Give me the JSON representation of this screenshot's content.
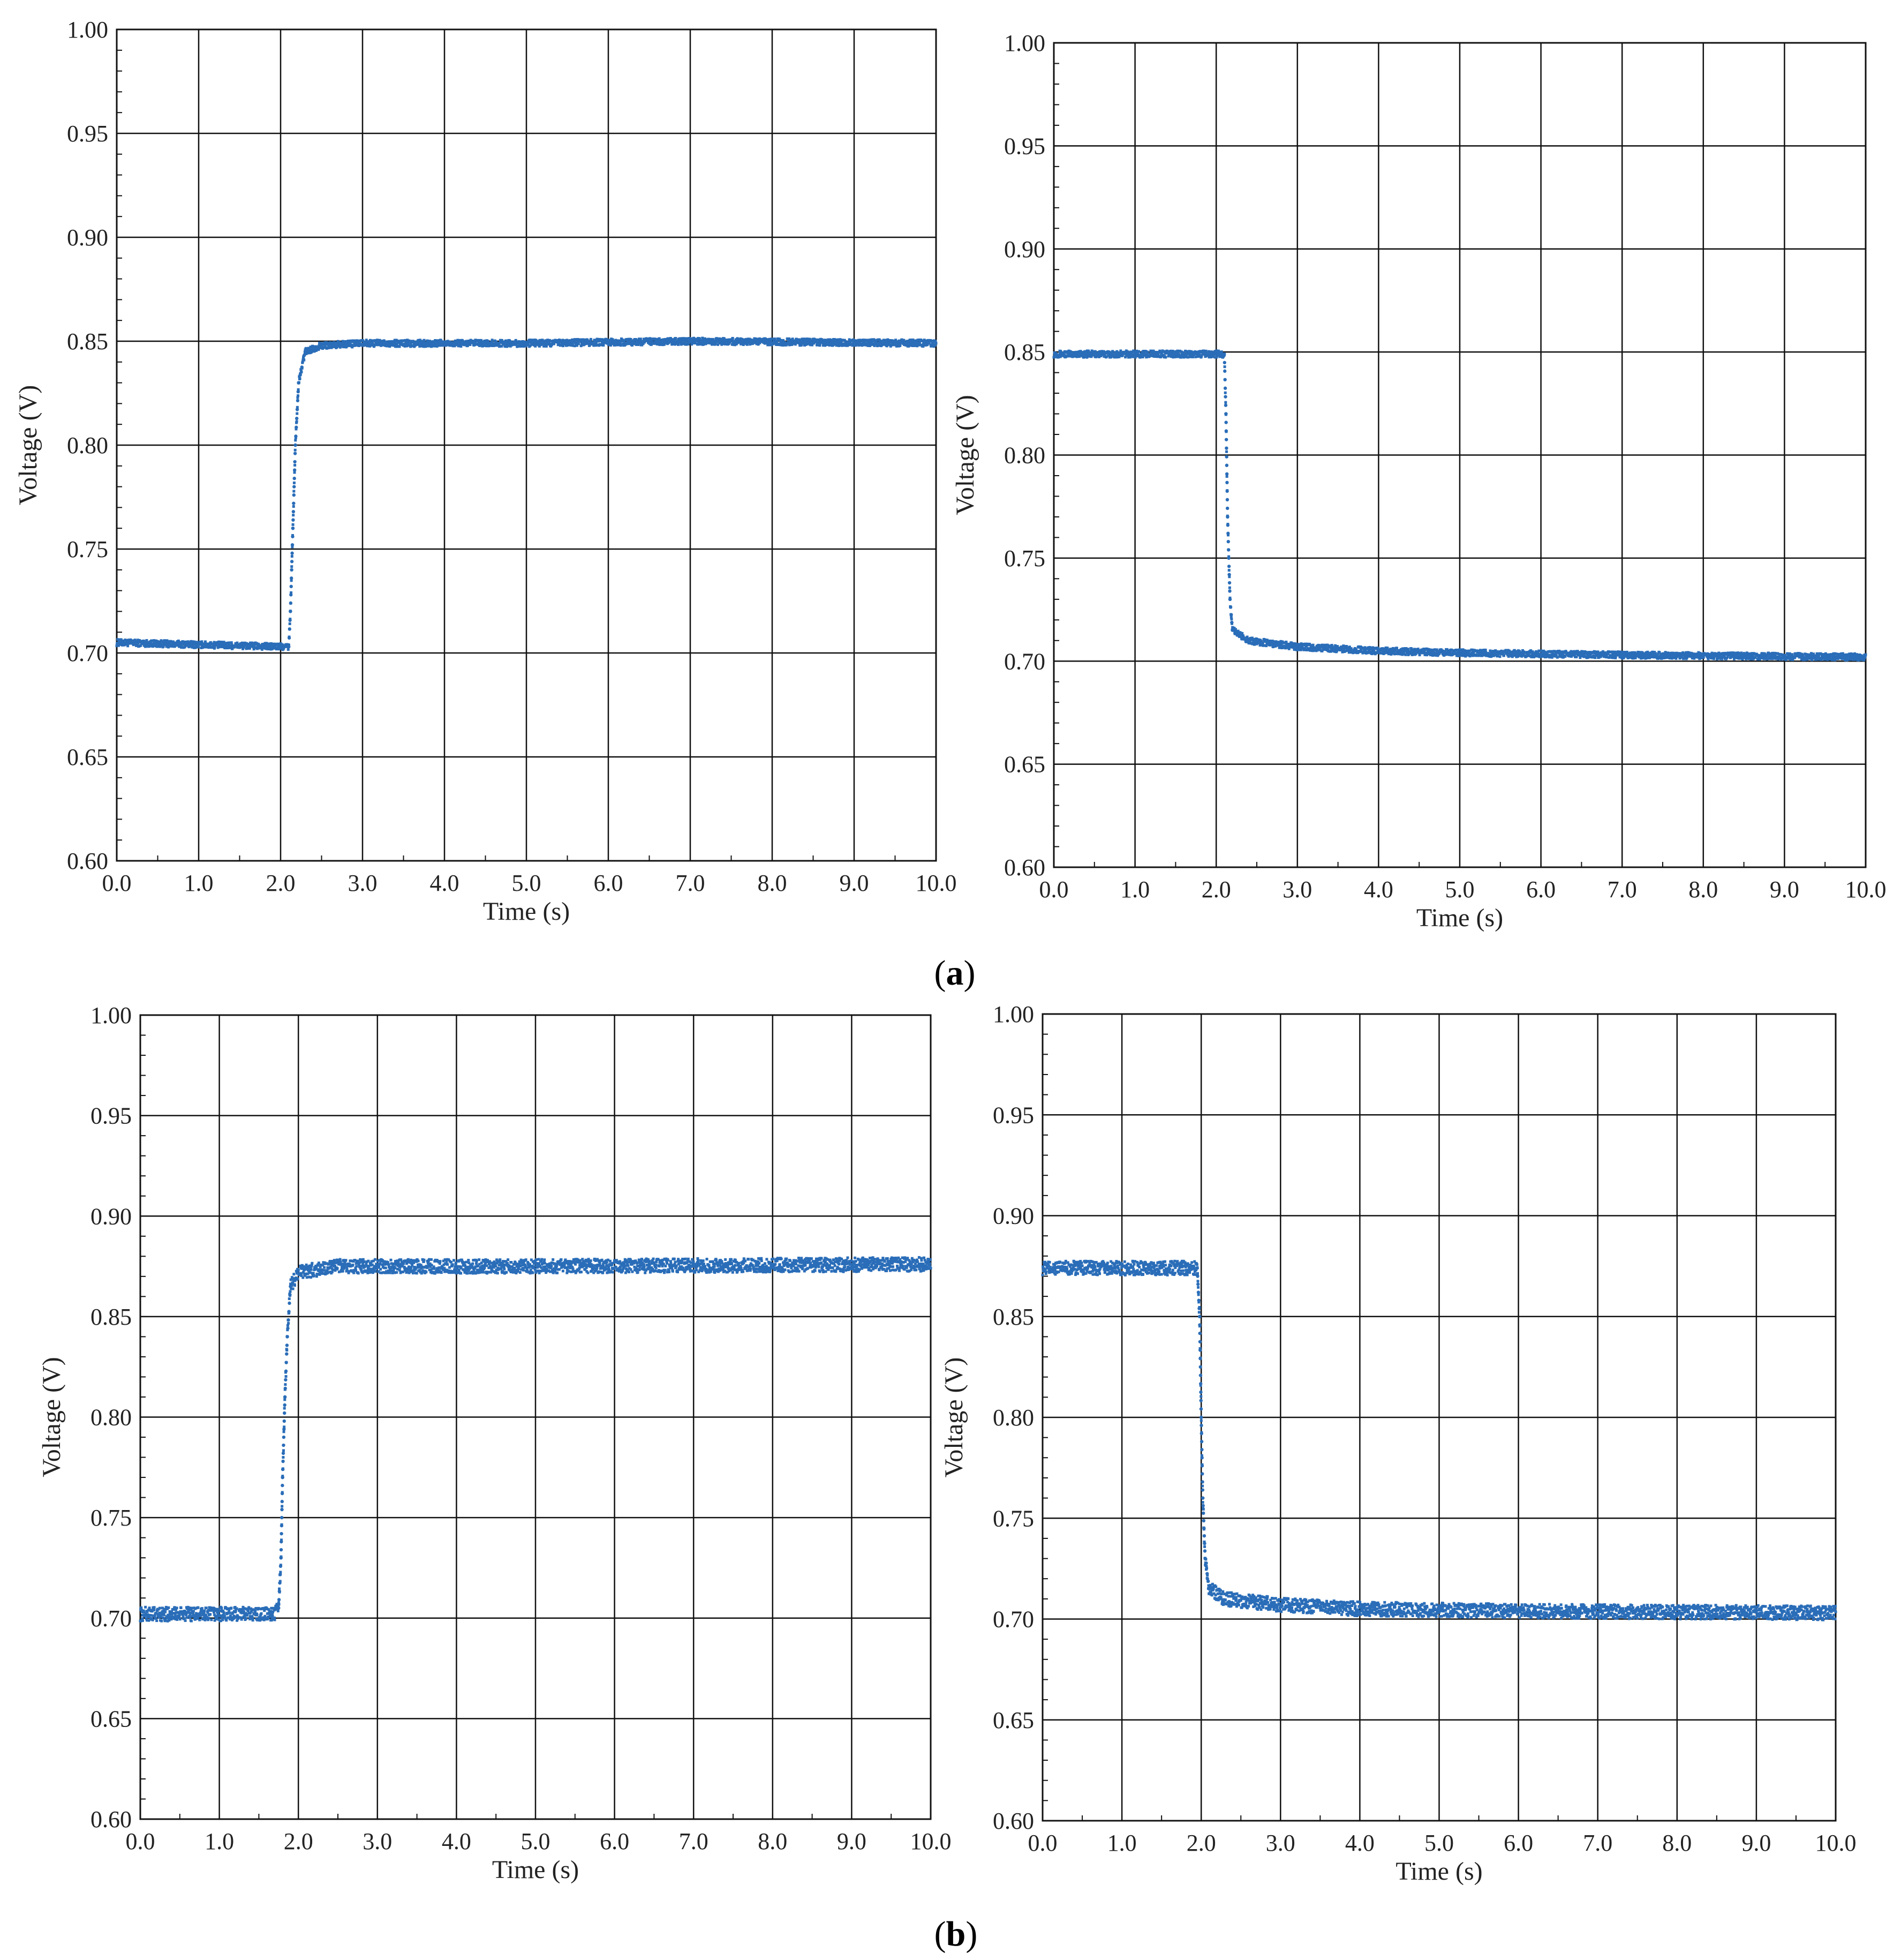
{
  "panel_labels": [
    "a",
    "b"
  ],
  "chart_data": [
    {
      "type": "scatter",
      "panel": "a",
      "xlabel": "Time (s)",
      "ylabel": "Voltage (V)",
      "xlim": [
        0,
        10
      ],
      "ylim": [
        0.6,
        1.0
      ],
      "xticks": [
        "0.0",
        "1.0",
        "2.0",
        "3.0",
        "4.0",
        "5.0",
        "6.0",
        "7.0",
        "8.0",
        "9.0",
        "10.0"
      ],
      "yticks": [
        "0.60",
        "0.65",
        "0.70",
        "0.75",
        "0.80",
        "0.85",
        "0.90",
        "0.95",
        "1.00"
      ],
      "grid": true,
      "color": "#2a6db8",
      "series": [
        {
          "values": [
            [
              0.0,
              0.705
            ],
            [
              1.0,
              0.704
            ],
            [
              2.0,
              0.703
            ],
            [
              2.1,
              0.703
            ],
            [
              2.12,
              0.72
            ],
            [
              2.15,
              0.76
            ],
            [
              2.18,
              0.8
            ],
            [
              2.22,
              0.83
            ],
            [
              2.3,
              0.845
            ],
            [
              2.5,
              0.848
            ],
            [
              3.0,
              0.849
            ],
            [
              5.0,
              0.849
            ],
            [
              7.0,
              0.85
            ],
            [
              10.0,
              0.849
            ]
          ]
        }
      ]
    },
    {
      "type": "scatter",
      "panel": "a",
      "xlabel": "Time (s)",
      "ylabel": "Voltage (V)",
      "xlim": [
        0,
        10
      ],
      "ylim": [
        0.6,
        1.0
      ],
      "xticks": [
        "0.0",
        "1.0",
        "2.0",
        "3.0",
        "4.0",
        "5.0",
        "6.0",
        "7.0",
        "8.0",
        "9.0",
        "10.0"
      ],
      "yticks": [
        "0.60",
        "0.65",
        "0.70",
        "0.75",
        "0.80",
        "0.85",
        "0.90",
        "0.95",
        "1.00"
      ],
      "grid": true,
      "color": "#2a6db8",
      "series": [
        {
          "values": [
            [
              0.0,
              0.849
            ],
            [
              1.0,
              0.849
            ],
            [
              2.0,
              0.849
            ],
            [
              2.1,
              0.849
            ],
            [
              2.12,
              0.82
            ],
            [
              2.14,
              0.77
            ],
            [
              2.17,
              0.73
            ],
            [
              2.2,
              0.715
            ],
            [
              2.4,
              0.71
            ],
            [
              3.0,
              0.707
            ],
            [
              4.0,
              0.705
            ],
            [
              5.0,
              0.704
            ],
            [
              7.0,
              0.703
            ],
            [
              10.0,
              0.702
            ]
          ]
        }
      ]
    },
    {
      "type": "scatter",
      "panel": "b",
      "xlabel": "Time (s)",
      "ylabel": "Voltage (V)",
      "xlim": [
        0,
        10
      ],
      "ylim": [
        0.6,
        1.0
      ],
      "xticks": [
        "0.0",
        "1.0",
        "2.0",
        "3.0",
        "4.0",
        "5.0",
        "6.0",
        "7.0",
        "8.0",
        "9.0",
        "10.0"
      ],
      "yticks": [
        "0.60",
        "0.65",
        "0.70",
        "0.75",
        "0.80",
        "0.85",
        "0.90",
        "0.95",
        "1.00"
      ],
      "grid": true,
      "color": "#2a6db8",
      "series": [
        {
          "values": [
            [
              0.0,
              0.702
            ],
            [
              1.0,
              0.702
            ],
            [
              1.7,
              0.702
            ],
            [
              1.75,
              0.705
            ],
            [
              1.78,
              0.73
            ],
            [
              1.8,
              0.77
            ],
            [
              1.83,
              0.81
            ],
            [
              1.86,
              0.84
            ],
            [
              1.9,
              0.865
            ],
            [
              2.0,
              0.872
            ],
            [
              2.5,
              0.875
            ],
            [
              5.0,
              0.875
            ],
            [
              10.0,
              0.876
            ]
          ]
        }
      ]
    },
    {
      "type": "scatter",
      "panel": "b",
      "xlabel": "Time (s)",
      "ylabel": "Voltage (V)",
      "xlim": [
        0,
        10
      ],
      "ylim": [
        0.6,
        1.0
      ],
      "xticks": [
        "0.0",
        "1.0",
        "2.0",
        "3.0",
        "4.0",
        "5.0",
        "6.0",
        "7.0",
        "8.0",
        "9.0",
        "10.0"
      ],
      "yticks": [
        "0.60",
        "0.65",
        "0.70",
        "0.75",
        "0.80",
        "0.85",
        "0.90",
        "0.95",
        "1.00"
      ],
      "grid": true,
      "color": "#2a6db8",
      "series": [
        {
          "values": [
            [
              0.0,
              0.874
            ],
            [
              1.0,
              0.874
            ],
            [
              1.95,
              0.874
            ],
            [
              1.98,
              0.85
            ],
            [
              2.0,
              0.8
            ],
            [
              2.02,
              0.76
            ],
            [
              2.05,
              0.73
            ],
            [
              2.1,
              0.715
            ],
            [
              2.3,
              0.71
            ],
            [
              3.0,
              0.707
            ],
            [
              4.0,
              0.705
            ],
            [
              6.0,
              0.704
            ],
            [
              10.0,
              0.703
            ]
          ]
        }
      ]
    }
  ]
}
